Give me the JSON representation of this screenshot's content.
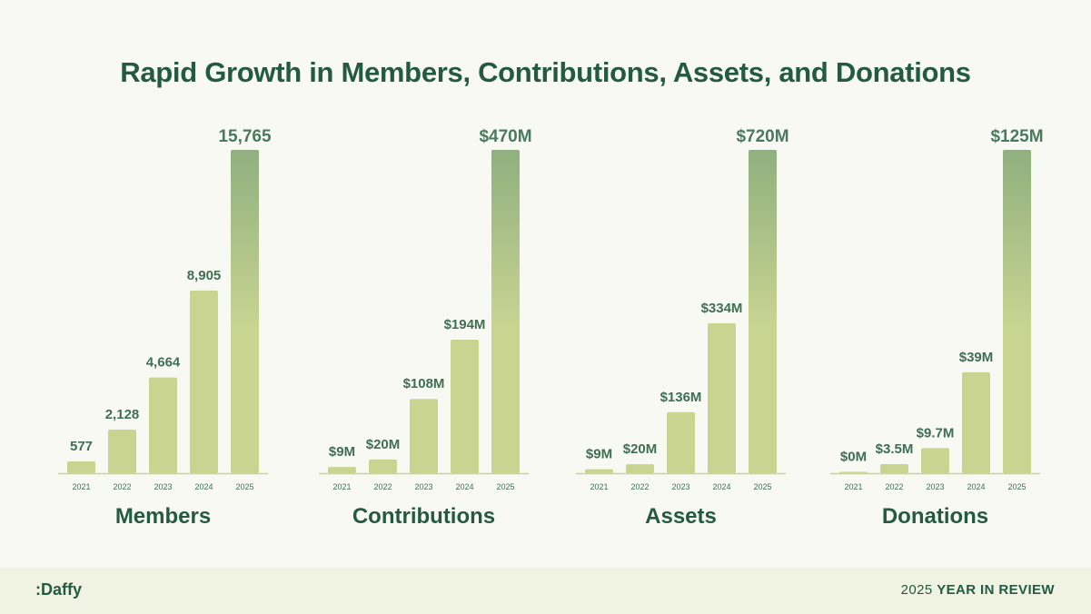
{
  "title": "Rapid Growth in Members, Contributions, Assets, and Donations",
  "footer": {
    "logo": ":Daffy",
    "review_year": "2025",
    "review_text": "YEAR IN REVIEW"
  },
  "colors": {
    "text": "#245a42",
    "bar": "#c9d491",
    "bar_top": "#8fb07f",
    "axis": "#c9d491"
  },
  "chart_data": [
    {
      "type": "bar",
      "title": "Members",
      "categories": [
        "2021",
        "2022",
        "2023",
        "2024",
        "2025"
      ],
      "values": [
        577,
        2128,
        4664,
        8905,
        15765
      ],
      "labels": [
        "577",
        "2,128",
        "4,664",
        "8,905",
        "15,765"
      ],
      "ylim": [
        0,
        15765
      ]
    },
    {
      "type": "bar",
      "title": "Contributions",
      "categories": [
        "2021",
        "2022",
        "2023",
        "2024",
        "2025"
      ],
      "values": [
        9,
        20,
        108,
        194,
        470
      ],
      "labels": [
        "$9M",
        "$20M",
        "$108M",
        "$194M",
        "$470M"
      ],
      "ylim": [
        0,
        470
      ]
    },
    {
      "type": "bar",
      "title": "Assets",
      "categories": [
        "2021",
        "2022",
        "2023",
        "2024",
        "2025"
      ],
      "values": [
        9,
        20,
        136,
        334,
        720
      ],
      "labels": [
        "$9M",
        "$20M",
        "$136M",
        "$334M",
        "$720M"
      ],
      "ylim": [
        0,
        720
      ]
    },
    {
      "type": "bar",
      "title": "Donations",
      "categories": [
        "2021",
        "2022",
        "2023",
        "2024",
        "2025"
      ],
      "values": [
        0,
        3.5,
        9.7,
        39,
        125
      ],
      "labels": [
        "$0M",
        "$3.5M",
        "$9.7M",
        "$39M",
        "$125M"
      ],
      "ylim": [
        0,
        125
      ]
    }
  ]
}
